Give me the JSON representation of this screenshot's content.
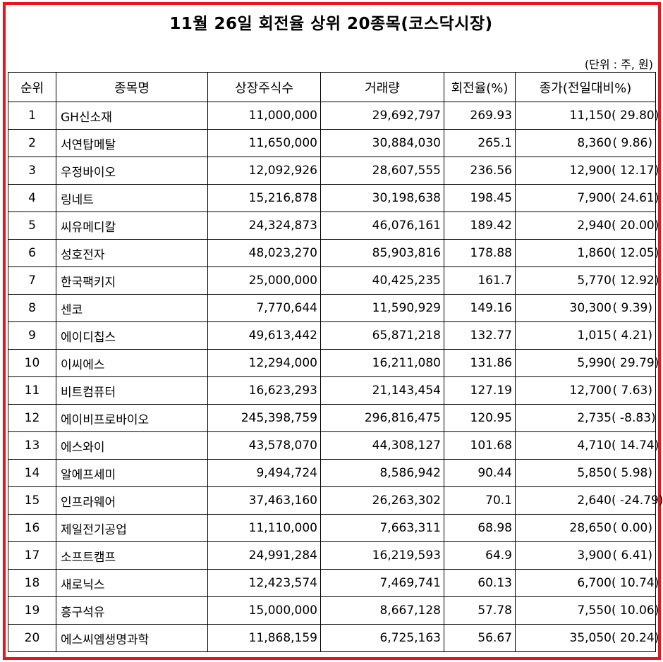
{
  "title": "11월 26일 회전율 상위 20종목(코스닥시장)",
  "unit_note": "(단위 : 주, 원)",
  "headers": {
    "rank": "순위",
    "name": "종목명",
    "shares": "상장주식수",
    "volume": "거래량",
    "turnover": "회전율(%)",
    "price": "종가(전일대비%)"
  },
  "rows": [
    {
      "rank": "1",
      "name": "GH신소재",
      "shares": "11,000,000",
      "volume": "29,692,797",
      "turnover": "269.93",
      "price": "11,150",
      "change": "( 29.80)"
    },
    {
      "rank": "2",
      "name": "서연탑메탈",
      "shares": "11,650,000",
      "volume": "30,884,030",
      "turnover": "265.1",
      "price": "8,360",
      "change": "( 9.86)"
    },
    {
      "rank": "3",
      "name": "우정바이오",
      "shares": "12,092,926",
      "volume": "28,607,555",
      "turnover": "236.56",
      "price": "12,900",
      "change": "( 12.17)"
    },
    {
      "rank": "4",
      "name": "링네트",
      "shares": "15,216,878",
      "volume": "30,198,638",
      "turnover": "198.45",
      "price": "7,900",
      "change": "( 24.61)"
    },
    {
      "rank": "5",
      "name": "씨유메디칼",
      "shares": "24,324,873",
      "volume": "46,076,161",
      "turnover": "189.42",
      "price": "2,940",
      "change": "( 20.00)"
    },
    {
      "rank": "6",
      "name": "성호전자",
      "shares": "48,023,270",
      "volume": "85,903,816",
      "turnover": "178.88",
      "price": "1,860",
      "change": "( 12.05)"
    },
    {
      "rank": "7",
      "name": "한국팩키지",
      "shares": "25,000,000",
      "volume": "40,425,235",
      "turnover": "161.7",
      "price": "5,770",
      "change": "( 12.92)"
    },
    {
      "rank": "8",
      "name": "센코",
      "shares": "7,770,644",
      "volume": "11,590,929",
      "turnover": "149.16",
      "price": "30,300",
      "change": "( 9.39)"
    },
    {
      "rank": "9",
      "name": "에이디칩스",
      "shares": "49,613,442",
      "volume": "65,871,218",
      "turnover": "132.77",
      "price": "1,015",
      "change": "( 4.21)"
    },
    {
      "rank": "10",
      "name": "이씨에스",
      "shares": "12,294,000",
      "volume": "16,211,080",
      "turnover": "131.86",
      "price": "5,990",
      "change": "( 29.79)"
    },
    {
      "rank": "11",
      "name": "비트컴퓨터",
      "shares": "16,623,293",
      "volume": "21,143,454",
      "turnover": "127.19",
      "price": "12,700",
      "change": "( 7.63)"
    },
    {
      "rank": "12",
      "name": "에이비프로바이오",
      "shares": "245,398,759",
      "volume": "296,816,475",
      "turnover": "120.95",
      "price": "2,735",
      "change": "( -8.83)"
    },
    {
      "rank": "13",
      "name": "에스와이",
      "shares": "43,578,070",
      "volume": "44,308,127",
      "turnover": "101.68",
      "price": "4,710",
      "change": "( 14.74)"
    },
    {
      "rank": "14",
      "name": "알에프세미",
      "shares": "9,494,724",
      "volume": "8,586,942",
      "turnover": "90.44",
      "price": "5,850",
      "change": "( 5.98)"
    },
    {
      "rank": "15",
      "name": "인프라웨어",
      "shares": "37,463,160",
      "volume": "26,263,302",
      "turnover": "70.1",
      "price": "2,640",
      "change": "( -24.79)"
    },
    {
      "rank": "16",
      "name": "제일전기공업",
      "shares": "11,110,000",
      "volume": "7,663,311",
      "turnover": "68.98",
      "price": "28,650",
      "change": "( 0.00)"
    },
    {
      "rank": "17",
      "name": "소프트캠프",
      "shares": "24,991,284",
      "volume": "16,219,593",
      "turnover": "64.9",
      "price": "3,900",
      "change": "( 6.41)"
    },
    {
      "rank": "18",
      "name": "새로닉스",
      "shares": "12,423,574",
      "volume": "7,469,741",
      "turnover": "60.13",
      "price": "6,700",
      "change": "( 10.74)"
    },
    {
      "rank": "19",
      "name": "흥구석유",
      "shares": "15,000,000",
      "volume": "8,667,128",
      "turnover": "57.78",
      "price": "7,550",
      "change": "( 10.06)"
    },
    {
      "rank": "20",
      "name": "에스씨엠생명과학",
      "shares": "11,868,159",
      "volume": "6,725,163",
      "turnover": "56.67",
      "price": "35,050",
      "change": "( 20.24)"
    }
  ],
  "colors": {
    "border": "#e8161b"
  }
}
